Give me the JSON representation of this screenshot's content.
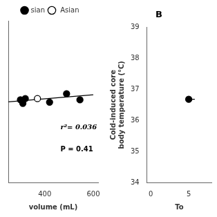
{
  "chart_data": [
    {
      "type": "scatter",
      "xlabel": "volume (mL)",
      "series": [
        {
          "name": "sian",
          "color": "#000000",
          "marker": "filled",
          "x": [
            300,
            310,
            320,
            420,
            490,
            545
          ],
          "values": [
            36.58,
            36.52,
            36.6,
            36.54,
            36.68,
            36.58
          ]
        },
        {
          "name": " Asian",
          "color": "#000000",
          "marker": "open",
          "x": [
            370
          ],
          "values": [
            36.6
          ]
        },
        {
          "type": "line",
          "color": "#000000",
          "x": [
            250,
            600
          ],
          "values": [
            36.545,
            36.665
          ]
        }
      ],
      "annotations": [
        "r²= 0.036",
        "P = 0.41"
      ],
      "xlim": [
        250,
        620
      ],
      "ylim": [
        35.2,
        37.9
      ],
      "xticks": [
        400,
        600
      ],
      "yticks": [],
      "tick_labels": "x",
      "grid": false,
      "legend": "top"
    },
    {
      "type": "scatter",
      "title": "B",
      "xlabel": "To",
      "ylabel": "Cold-induced core\nbody temperature (°C)",
      "series": [
        {
          "color": "#000000",
          "x": [
            5
          ],
          "values": [
            36.68
          ],
          "xerr": [
            0.8
          ]
        }
      ],
      "xlim": [
        -0.5,
        8
      ],
      "ylim": [
        34,
        39
      ],
      "xticks": [
        0,
        5
      ],
      "yticks": [
        34,
        35,
        36,
        37,
        38,
        39
      ],
      "grid": false
    }
  ]
}
